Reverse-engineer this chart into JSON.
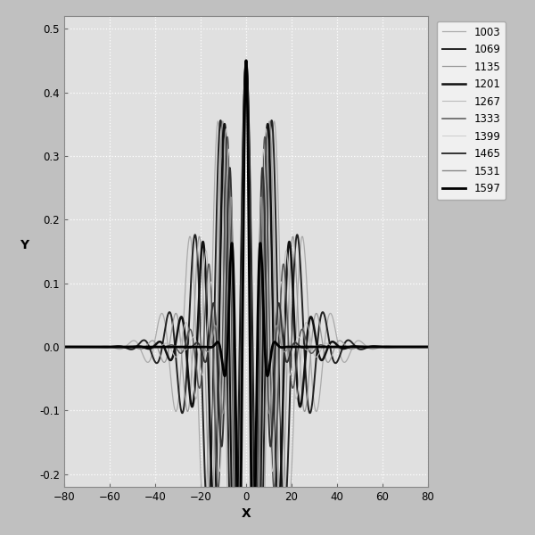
{
  "labels": [
    "1003",
    "1069",
    "1135",
    "1201",
    "1267",
    "1333",
    "1399",
    "1465",
    "1531",
    "1597"
  ],
  "line_colors": [
    "#aaaaaa",
    "#222222",
    "#999999",
    "#111111",
    "#bbbbbb",
    "#555555",
    "#cccccc",
    "#333333",
    "#888888",
    "#000000"
  ],
  "line_widths": [
    0.9,
    1.4,
    0.9,
    1.8,
    0.8,
    1.1,
    0.7,
    1.4,
    1.0,
    2.0
  ],
  "xlim": [
    -80,
    80
  ],
  "ylim": [
    -0.22,
    0.52
  ],
  "yticks": [
    -0.2,
    -0.1,
    0.0,
    0.1,
    0.2,
    0.3,
    0.4,
    0.5
  ],
  "xticks": [
    -80,
    -60,
    -40,
    -20,
    0,
    20,
    40,
    60,
    80
  ],
  "xlabel": "X",
  "ylabel": "Y",
  "bg_color": "#c0c0c0",
  "plot_bg_color": "#e0e0e0",
  "grid_color": "#ffffff",
  "legend_bg": "#f0f0f0",
  "base_freq": 0.08,
  "freq_step": 0.008,
  "sigma_base": 18.0,
  "sigma_step": 1.5
}
